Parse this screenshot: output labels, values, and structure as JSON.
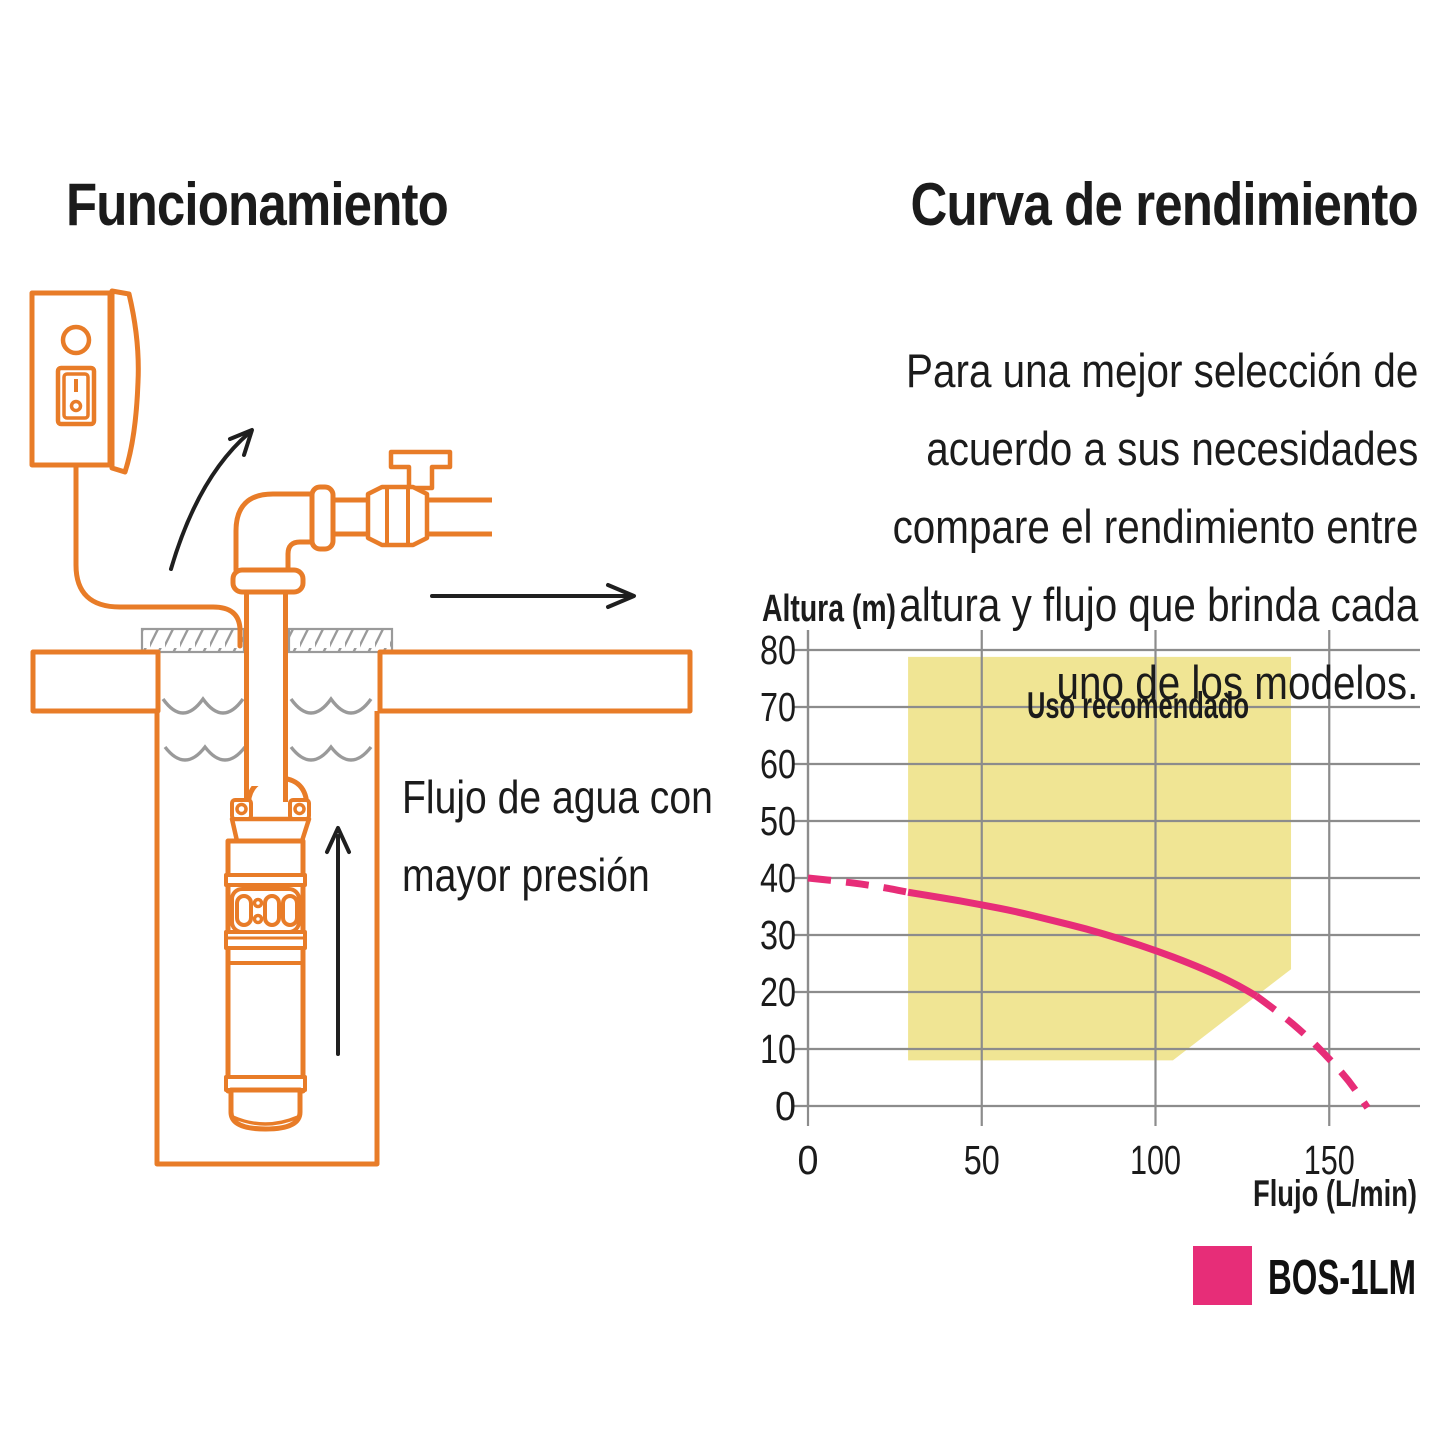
{
  "page": {
    "background": "#ffffff",
    "accent_orange": "#E87C28",
    "line_gray": "#9a9a9a",
    "text_color": "#1b1b1b"
  },
  "left_section": {
    "title": "Funcionamiento",
    "caption": {
      "line1": "Flujo de agua con",
      "line2": "mayor presión"
    }
  },
  "right_section": {
    "title": "Curva de rendimiento",
    "paragraph_lines": [
      "Para una mejor selección de",
      "acuerdo a sus necesidades",
      "compare el rendimiento entre",
      "altura y flujo que brinda cada",
      "uno de los modelos."
    ]
  },
  "chart_data": {
    "type": "line",
    "title": "Curva de rendimiento",
    "xlabel": "Flujo (L/min)",
    "ylabel": "Altura (m)",
    "xlim": [
      0,
      172
    ],
    "ylim": [
      0,
      83
    ],
    "xticks": [
      0,
      50,
      100,
      150
    ],
    "yticks": [
      0,
      10,
      20,
      30,
      40,
      50,
      60,
      70,
      80
    ],
    "grid": true,
    "grid_color": "#8c8c8c",
    "recommended_region": {
      "label": "Uso recomendado",
      "fill": "#F0E594",
      "polygon": [
        [
          28.8,
          78.8
        ],
        [
          139,
          78.8
        ],
        [
          139,
          24
        ],
        [
          105,
          8
        ],
        [
          28.8,
          8
        ]
      ]
    },
    "series": [
      {
        "name": "BOS-1LM",
        "color": "#E72D78",
        "segments": [
          {
            "style": "dashed",
            "points": [
              [
                0,
                40
              ],
              [
                8,
                39.5
              ],
              [
                16,
                38.9
              ],
              [
                23,
                38.2
              ],
              [
                28.8,
                37.5
              ]
            ]
          },
          {
            "style": "solid",
            "points": [
              [
                28.8,
                37.5
              ],
              [
                40,
                36.4
              ],
              [
                50,
                35.3
              ],
              [
                60,
                34.1
              ],
              [
                70,
                32.6
              ],
              [
                80,
                31.1
              ],
              [
                90,
                29.3
              ],
              [
                100,
                27.3
              ],
              [
                110,
                25.0
              ],
              [
                118,
                22.9
              ],
              [
                124,
                21.1
              ],
              [
                129,
                19.3
              ]
            ]
          },
          {
            "style": "dashed",
            "points": [
              [
                129,
                19.3
              ],
              [
                136,
                16.2
              ],
              [
                143,
                12.6
              ],
              [
                150,
                8.3
              ],
              [
                156,
                4.2
              ],
              [
                161,
                -0.3
              ]
            ]
          }
        ]
      }
    ],
    "legend": {
      "position": "bottom-right",
      "entries": [
        {
          "label": "BOS-1LM",
          "color": "#E72D78"
        }
      ]
    }
  }
}
